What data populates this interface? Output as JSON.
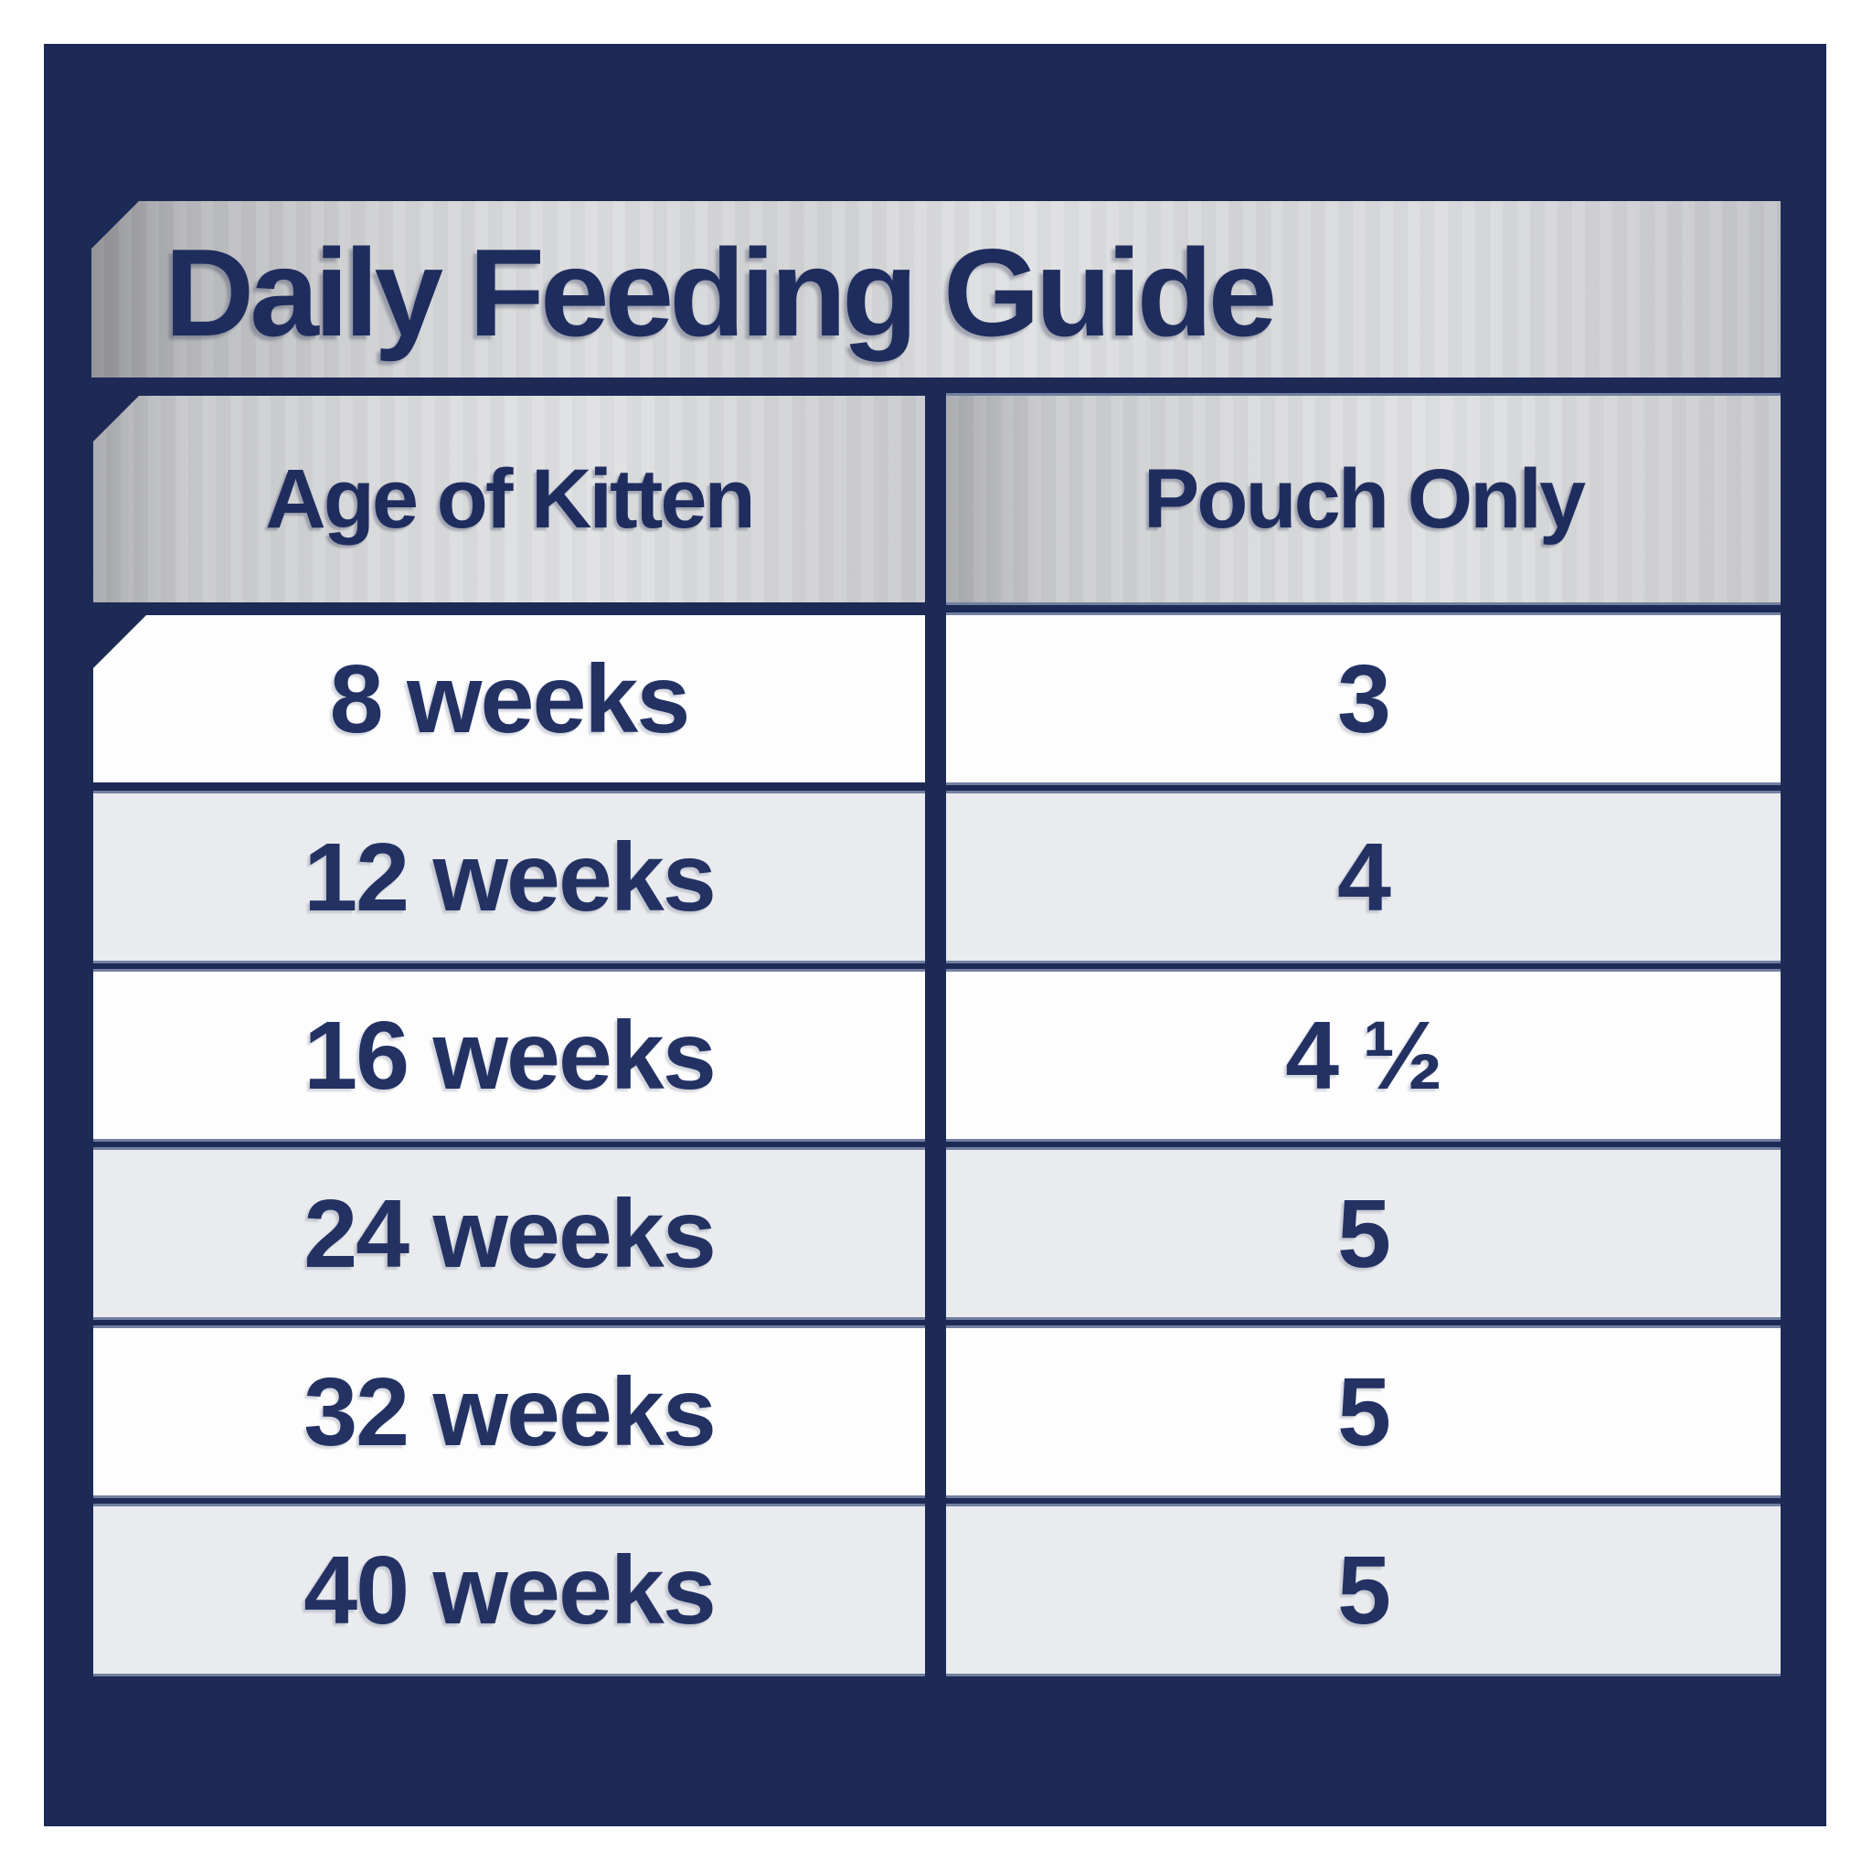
{
  "title": "Daily Feeding Guide",
  "colors": {
    "page_bg": "#ffffff",
    "panel_navy": "#1c2a55",
    "text_navy": "#1f2d5e",
    "row_white": "#fdfdfe",
    "row_gray": "#e9ebee",
    "silver_light": "#dcdddf",
    "silver_dark": "#8e8f94"
  },
  "chart_data": {
    "type": "table",
    "title": "Daily Feeding Guide",
    "columns": [
      "Age of Kitten",
      "Pouch Only"
    ],
    "rows": [
      [
        "8 weeks",
        "3"
      ],
      [
        "12 weeks",
        "4"
      ],
      [
        "16 weeks",
        "4 ½"
      ],
      [
        "24 weeks",
        "5"
      ],
      [
        "32 weeks",
        "5"
      ],
      [
        "40 weeks",
        "5"
      ]
    ],
    "layout": {
      "row_striping": "white / light-gray alternating",
      "header_style": "silver metallic gradient band",
      "notched_corners": [
        "title-band top-left",
        "header-left top-left",
        "first-row-left top-left"
      ]
    }
  }
}
